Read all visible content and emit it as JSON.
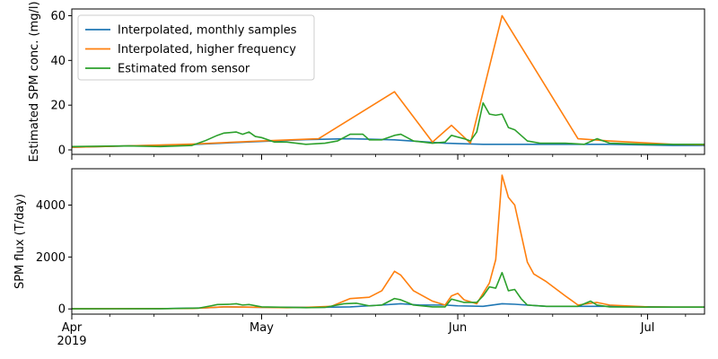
{
  "chart_data": [
    {
      "type": "line",
      "title": "",
      "xlabel": "",
      "ylabel": "Estimated SPM conc. (mg/l)",
      "ylim": [
        -2,
        63
      ],
      "yticks": [
        0,
        20,
        40,
        60
      ],
      "legend_position": "top-left",
      "grid": false,
      "series": [
        {
          "name": "Interpolated, monthly samples",
          "color": "#1f77b4",
          "points": [
            [
              "2019-04-01",
              1.2
            ],
            [
              "2019-04-10",
              1.8
            ],
            [
              "2019-04-20",
              2.4
            ],
            [
              "2019-05-01",
              3.8
            ],
            [
              "2019-05-08",
              4.6
            ],
            [
              "2019-05-15",
              5.0
            ],
            [
              "2019-05-22",
              4.5
            ],
            [
              "2019-05-30",
              3.0
            ],
            [
              "2019-06-05",
              2.5
            ],
            [
              "2019-06-15",
              2.5
            ],
            [
              "2019-06-25",
              2.5
            ],
            [
              "2019-07-05",
              2.0
            ],
            [
              "2019-07-10",
              2.0
            ]
          ]
        },
        {
          "name": "Interpolated, higher frequency",
          "color": "#ff7f0e",
          "points": [
            [
              "2019-04-01",
              1.2
            ],
            [
              "2019-04-10",
              1.8
            ],
            [
              "2019-04-20",
              2.6
            ],
            [
              "2019-05-01",
              4.0
            ],
            [
              "2019-05-10",
              5.0
            ],
            [
              "2019-05-22",
              26.0
            ],
            [
              "2019-05-28",
              3.5
            ],
            [
              "2019-05-31",
              11.0
            ],
            [
              "2019-06-03",
              3.0
            ],
            [
              "2019-06-08",
              60.0
            ],
            [
              "2019-06-20",
              5.0
            ],
            [
              "2019-06-25",
              4.0
            ],
            [
              "2019-07-05",
              2.5
            ],
            [
              "2019-07-10",
              2.3
            ]
          ]
        },
        {
          "name": "Estimated from sensor",
          "color": "#2ca02c",
          "points": [
            [
              "2019-04-01",
              1.5
            ],
            [
              "2019-04-10",
              1.8
            ],
            [
              "2019-04-15",
              1.5
            ],
            [
              "2019-04-20",
              2.0
            ],
            [
              "2019-04-22",
              4.0
            ],
            [
              "2019-04-24",
              6.5
            ],
            [
              "2019-04-25",
              7.5
            ],
            [
              "2019-04-27",
              8.0
            ],
            [
              "2019-04-28",
              7.0
            ],
            [
              "2019-04-29",
              8.0
            ],
            [
              "2019-04-30",
              6.0
            ],
            [
              "2019-05-01",
              5.5
            ],
            [
              "2019-05-02",
              4.5
            ],
            [
              "2019-05-03",
              3.5
            ],
            [
              "2019-05-05",
              3.5
            ],
            [
              "2019-05-08",
              2.5
            ],
            [
              "2019-05-11",
              3.0
            ],
            [
              "2019-05-13",
              4.0
            ],
            [
              "2019-05-15",
              7.0
            ],
            [
              "2019-05-17",
              7.0
            ],
            [
              "2019-05-18",
              4.5
            ],
            [
              "2019-05-20",
              4.5
            ],
            [
              "2019-05-22",
              6.5
            ],
            [
              "2019-05-23",
              7.0
            ],
            [
              "2019-05-25",
              4.0
            ],
            [
              "2019-05-28",
              3.0
            ],
            [
              "2019-05-30",
              3.5
            ],
            [
              "2019-05-31",
              6.5
            ],
            [
              "2019-06-02",
              5.0
            ],
            [
              "2019-06-03",
              4.0
            ],
            [
              "2019-06-04",
              8.0
            ],
            [
              "2019-06-05",
              21.0
            ],
            [
              "2019-06-06",
              16.0
            ],
            [
              "2019-06-07",
              15.5
            ],
            [
              "2019-06-08",
              16.0
            ],
            [
              "2019-06-09",
              10.0
            ],
            [
              "2019-06-10",
              9.0
            ],
            [
              "2019-06-12",
              4.0
            ],
            [
              "2019-06-14",
              3.0
            ],
            [
              "2019-06-18",
              3.0
            ],
            [
              "2019-06-21",
              2.5
            ],
            [
              "2019-06-23",
              5.0
            ],
            [
              "2019-06-25",
              3.0
            ],
            [
              "2019-07-01",
              2.5
            ],
            [
              "2019-07-05",
              2.5
            ],
            [
              "2019-07-10",
              2.5
            ]
          ]
        }
      ]
    },
    {
      "type": "line",
      "title": "",
      "xlabel": "",
      "ylabel": "SPM flux (T/day)",
      "ylim": [
        -200,
        5400
      ],
      "yticks": [
        0,
        2000,
        4000
      ],
      "grid": false,
      "xticks_major": [
        {
          "date": "2019-04-01",
          "label": "Apr",
          "sublabel": "2019"
        },
        {
          "date": "2019-05-01",
          "label": "May",
          "sublabel": ""
        },
        {
          "date": "2019-06-01",
          "label": "Jun",
          "sublabel": ""
        },
        {
          "date": "2019-07-01",
          "label": "Jul",
          "sublabel": ""
        }
      ],
      "series": [
        {
          "name": "Interpolated, monthly samples",
          "color": "#1f77b4",
          "points": [
            [
              "2019-04-01",
              5
            ],
            [
              "2019-04-15",
              10
            ],
            [
              "2019-04-22",
              40
            ],
            [
              "2019-04-25",
              80
            ],
            [
              "2019-05-01",
              60
            ],
            [
              "2019-05-10",
              60
            ],
            [
              "2019-05-15",
              80
            ],
            [
              "2019-05-20",
              150
            ],
            [
              "2019-05-23",
              200
            ],
            [
              "2019-05-26",
              150
            ],
            [
              "2019-05-30",
              150
            ],
            [
              "2019-06-01",
              120
            ],
            [
              "2019-06-05",
              100
            ],
            [
              "2019-06-08",
              200
            ],
            [
              "2019-06-10",
              180
            ],
            [
              "2019-06-15",
              100
            ],
            [
              "2019-06-20",
              100
            ],
            [
              "2019-06-25",
              100
            ],
            [
              "2019-07-05",
              70
            ],
            [
              "2019-07-10",
              70
            ]
          ]
        },
        {
          "name": "Interpolated, higher frequency",
          "color": "#ff7f0e",
          "points": [
            [
              "2019-04-01",
              5
            ],
            [
              "2019-04-10",
              10
            ],
            [
              "2019-04-20",
              20
            ],
            [
              "2019-04-25",
              80
            ],
            [
              "2019-05-01",
              60
            ],
            [
              "2019-05-05",
              50
            ],
            [
              "2019-05-08",
              60
            ],
            [
              "2019-05-12",
              100
            ],
            [
              "2019-05-14",
              300
            ],
            [
              "2019-05-15",
              400
            ],
            [
              "2019-05-18",
              450
            ],
            [
              "2019-05-20",
              700
            ],
            [
              "2019-05-22",
              1450
            ],
            [
              "2019-05-23",
              1300
            ],
            [
              "2019-05-25",
              700
            ],
            [
              "2019-05-28",
              300
            ],
            [
              "2019-05-30",
              150
            ],
            [
              "2019-05-31",
              500
            ],
            [
              "2019-06-01",
              600
            ],
            [
              "2019-06-02",
              350
            ],
            [
              "2019-06-04",
              200
            ],
            [
              "2019-06-06",
              1000
            ],
            [
              "2019-06-07",
              1900
            ],
            [
              "2019-06-08",
              5150
            ],
            [
              "2019-06-09",
              4300
            ],
            [
              "2019-06-10",
              4000
            ],
            [
              "2019-06-12",
              1800
            ],
            [
              "2019-06-13",
              1350
            ],
            [
              "2019-06-15",
              1050
            ],
            [
              "2019-06-18",
              500
            ],
            [
              "2019-06-20",
              150
            ],
            [
              "2019-06-23",
              250
            ],
            [
              "2019-06-25",
              150
            ],
            [
              "2019-07-01",
              80
            ],
            [
              "2019-07-05",
              70
            ],
            [
              "2019-07-10",
              70
            ]
          ]
        },
        {
          "name": "Estimated from sensor",
          "color": "#2ca02c",
          "points": [
            [
              "2019-04-01",
              5
            ],
            [
              "2019-04-15",
              10
            ],
            [
              "2019-04-21",
              30
            ],
            [
              "2019-04-23",
              120
            ],
            [
              "2019-04-24",
              170
            ],
            [
              "2019-04-26",
              180
            ],
            [
              "2019-04-27",
              200
            ],
            [
              "2019-04-28",
              150
            ],
            [
              "2019-04-29",
              170
            ],
            [
              "2019-05-01",
              80
            ],
            [
              "2019-05-08",
              50
            ],
            [
              "2019-05-11",
              60
            ],
            [
              "2019-05-14",
              200
            ],
            [
              "2019-05-16",
              220
            ],
            [
              "2019-05-18",
              120
            ],
            [
              "2019-05-20",
              150
            ],
            [
              "2019-05-22",
              400
            ],
            [
              "2019-05-23",
              350
            ],
            [
              "2019-05-25",
              150
            ],
            [
              "2019-05-28",
              80
            ],
            [
              "2019-05-30",
              80
            ],
            [
              "2019-05-31",
              380
            ],
            [
              "2019-06-02",
              250
            ],
            [
              "2019-06-04",
              250
            ],
            [
              "2019-06-05",
              500
            ],
            [
              "2019-06-06",
              850
            ],
            [
              "2019-06-07",
              800
            ],
            [
              "2019-06-08",
              1400
            ],
            [
              "2019-06-09",
              700
            ],
            [
              "2019-06-10",
              750
            ],
            [
              "2019-06-11",
              400
            ],
            [
              "2019-06-12",
              150
            ],
            [
              "2019-06-15",
              100
            ],
            [
              "2019-06-20",
              100
            ],
            [
              "2019-06-22",
              300
            ],
            [
              "2019-06-23",
              150
            ],
            [
              "2019-06-25",
              80
            ],
            [
              "2019-07-01",
              70
            ],
            [
              "2019-07-05",
              70
            ],
            [
              "2019-07-10",
              70
            ]
          ]
        }
      ]
    }
  ]
}
